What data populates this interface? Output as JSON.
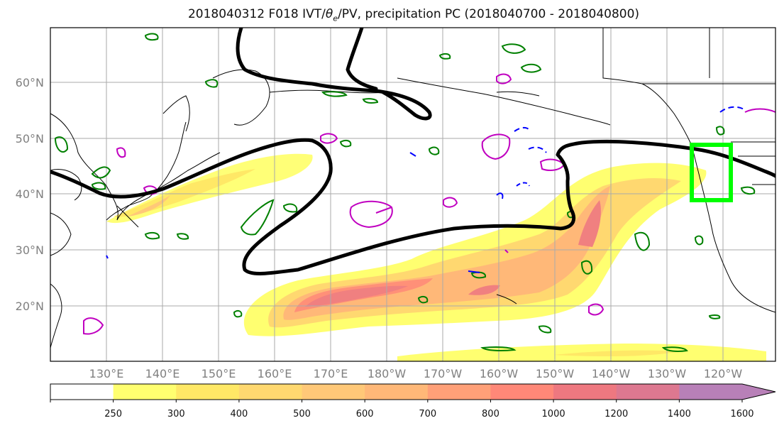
{
  "title_main": "2018040312 F018 IVT/",
  "title_theta": "θ",
  "title_sub": "e",
  "title_rest": "/PV, precipitation PC (2018040700 - 2018040800)",
  "lat_labels": [
    "60°N",
    "50°N",
    "40°N",
    "30°N",
    "20°N"
  ],
  "lon_labels": [
    "130°E",
    "140°E",
    "150°E",
    "160°E",
    "170°E",
    "180°W",
    "170°W",
    "160°W",
    "150°W",
    "140°W",
    "130°W",
    "120°W"
  ],
  "colorbar": {
    "ticks": [
      "250",
      "300",
      "400",
      "500",
      "600",
      "700",
      "800",
      "1000",
      "1200",
      "1400",
      "1600"
    ],
    "colors": [
      "#ffff70",
      "#ffe866",
      "#ffd870",
      "#ffc878",
      "#ffb878",
      "#ffa078",
      "#ff8878",
      "#ee7880",
      "#dd7890",
      "#b880b8"
    ],
    "extend": "max"
  },
  "colors": {
    "ivt_fill": "#ffd870",
    "ivt_core": "#ff8080",
    "pv_contour": "#000000",
    "theta_contour": "#008000",
    "positive_contour": "#c000c0",
    "negative_contour": "#0000ff",
    "region_box": "#00ff00"
  }
}
